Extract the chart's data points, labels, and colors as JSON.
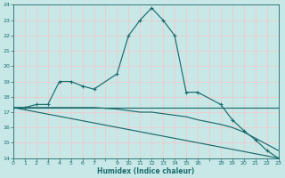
{
  "xlabel": "Humidex (Indice chaleur)",
  "bg_color": "#c8e8e8",
  "grid_color": "#f0c8c8",
  "line_color": "#1a6b6b",
  "xlim": [
    0,
    23
  ],
  "ylim": [
    14,
    24
  ],
  "yticks": [
    14,
    15,
    16,
    17,
    18,
    19,
    20,
    21,
    22,
    23,
    24
  ],
  "xtick_vals": [
    0,
    1,
    2,
    3,
    4,
    5,
    6,
    7,
    9,
    10,
    11,
    12,
    13,
    14,
    15,
    16,
    18,
    19,
    20,
    21,
    22,
    23
  ],
  "curve1_x": [
    0,
    1,
    2,
    3,
    4,
    5,
    6,
    7,
    9,
    10,
    11,
    12,
    13,
    14,
    15,
    16,
    18,
    19,
    20,
    21,
    22,
    23
  ],
  "curve1_y": [
    17.3,
    17.3,
    17.5,
    17.5,
    19.0,
    19.0,
    18.7,
    18.5,
    19.5,
    22.0,
    23.0,
    23.8,
    23.0,
    22.0,
    18.3,
    18.3,
    17.5,
    16.5,
    15.8,
    15.2,
    14.5,
    14.0
  ],
  "curve2_x": [
    0,
    1,
    2,
    3,
    4,
    5,
    6,
    7,
    9,
    10,
    11,
    12,
    13,
    14,
    15,
    16,
    18,
    19,
    20,
    21,
    22,
    23
  ],
  "curve2_y": [
    17.3,
    17.3,
    17.3,
    17.3,
    17.3,
    17.3,
    17.3,
    17.3,
    17.3,
    17.3,
    17.3,
    17.3,
    17.3,
    17.3,
    17.3,
    17.3,
    17.3,
    17.3,
    17.3,
    17.3,
    17.3,
    17.3
  ],
  "curve3_x": [
    0,
    23
  ],
  "curve3_y": [
    17.3,
    14.0
  ],
  "curve4_x": [
    0,
    1,
    2,
    3,
    4,
    5,
    6,
    7,
    9,
    10,
    11,
    12,
    13,
    14,
    15,
    16,
    18,
    19,
    20,
    21,
    22,
    23
  ],
  "curve4_y": [
    17.3,
    17.3,
    17.3,
    17.3,
    17.3,
    17.3,
    17.3,
    17.3,
    17.2,
    17.1,
    17.0,
    17.0,
    16.9,
    16.8,
    16.7,
    16.5,
    16.2,
    16.0,
    15.7,
    15.3,
    14.9,
    14.5
  ]
}
